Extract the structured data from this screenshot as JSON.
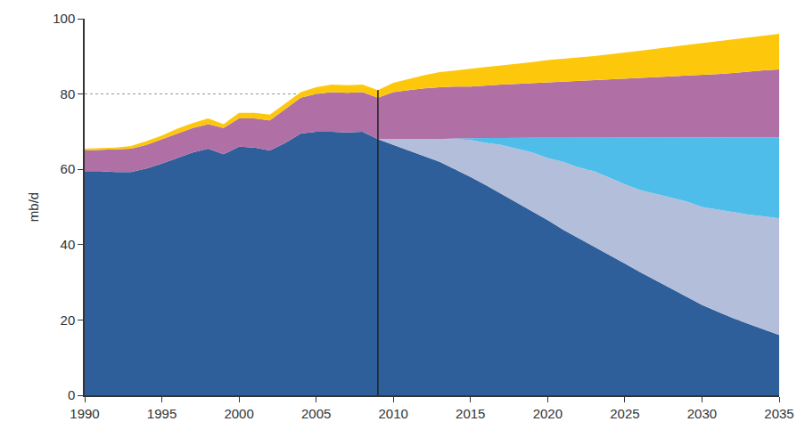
{
  "chart_data": {
    "type": "area",
    "stacked": true,
    "grid": true,
    "ylabel": "mb/d",
    "x": [
      1990,
      1991,
      1992,
      1993,
      1994,
      1995,
      1996,
      1997,
      1998,
      1999,
      2000,
      2001,
      2002,
      2003,
      2004,
      2005,
      2006,
      2007,
      2008,
      2009,
      2010,
      2011,
      2012,
      2013,
      2014,
      2015,
      2016,
      2017,
      2018,
      2019,
      2020,
      2021,
      2022,
      2023,
      2024,
      2025,
      2026,
      2027,
      2028,
      2029,
      2030,
      2031,
      2032,
      2033,
      2034,
      2035
    ],
    "series": [
      {
        "color": "#2e5f9a",
        "values": [
          59.5,
          59.5,
          59.3,
          59.3,
          60.2,
          61.5,
          63,
          64.5,
          65.5,
          64,
          66,
          65.8,
          65,
          67,
          69.5,
          70,
          70,
          69.8,
          70,
          68,
          66.5,
          65,
          63.5,
          62,
          60,
          58,
          55.8,
          53.5,
          51.3,
          49,
          46.5,
          44,
          41.8,
          39.5,
          37.2,
          35,
          32.7,
          30.5,
          28.3,
          26.1,
          24,
          22.2,
          20.5,
          19,
          17.5,
          16
        ]
      },
      {
        "color": "#b3bedb",
        "values": [
          null,
          null,
          null,
          null,
          null,
          null,
          null,
          null,
          null,
          null,
          null,
          null,
          null,
          null,
          null,
          null,
          null,
          null,
          null,
          0,
          1.5,
          3,
          4.5,
          6,
          8,
          9.8,
          11.2,
          13,
          14.2,
          15.5,
          16.5,
          18,
          18.7,
          20,
          20.6,
          21,
          21.8,
          23,
          24.2,
          25.4,
          26,
          27.1,
          28.1,
          29,
          30,
          31
        ]
      },
      {
        "color": "#4fbdea",
        "values": [
          null,
          null,
          null,
          null,
          null,
          null,
          null,
          null,
          null,
          null,
          null,
          null,
          null,
          null,
          null,
          null,
          null,
          null,
          null,
          null,
          null,
          null,
          null,
          0,
          0.2,
          0.5,
          1.3,
          1.8,
          2.9,
          3.9,
          5.4,
          6.4,
          7.9,
          8.9,
          10.6,
          12.4,
          13.9,
          14.9,
          15.9,
          16.9,
          18.5,
          19.2,
          19.9,
          20.5,
          21,
          21.5
        ]
      },
      {
        "color": "#b070a6",
        "values": [
          5.5,
          5.7,
          6,
          6.2,
          6.3,
          6.5,
          6.5,
          6.5,
          6.5,
          7,
          7.5,
          7.7,
          8,
          9,
          9.5,
          10,
          10.5,
          10.5,
          10.5,
          11,
          12.5,
          13,
          13.5,
          13.8,
          13.8,
          13.7,
          14,
          14.2,
          14.3,
          14.5,
          14.6,
          14.8,
          15,
          15.2,
          15.4,
          15.6,
          15.8,
          16,
          16.2,
          16.4,
          16.5,
          16.8,
          17.1,
          17.5,
          17.8,
          18
        ]
      },
      {
        "color": "#fdc80c",
        "values": [
          0.5,
          0.5,
          0.5,
          0.7,
          1,
          1,
          1.3,
          1.3,
          1.5,
          1,
          1.5,
          1.5,
          1.5,
          1.5,
          1.5,
          1.8,
          2,
          2,
          2,
          2,
          2.5,
          3,
          3.5,
          4,
          4.3,
          4.8,
          4.9,
          5.1,
          5.3,
          5.6,
          6,
          6.1,
          6.3,
          6.5,
          6.7,
          7,
          7.3,
          7.6,
          7.9,
          8.2,
          8.5,
          8.7,
          8.9,
          9,
          9.2,
          9.5
        ]
      }
    ],
    "vline": 2009,
    "xlim": [
      1990,
      2035
    ],
    "ylim": [
      0,
      100
    ],
    "xticks": [
      1990,
      1995,
      2000,
      2005,
      2010,
      2015,
      2020,
      2025,
      2030,
      2035
    ],
    "yticks": [
      0,
      20,
      40,
      60,
      80,
      100
    ]
  }
}
